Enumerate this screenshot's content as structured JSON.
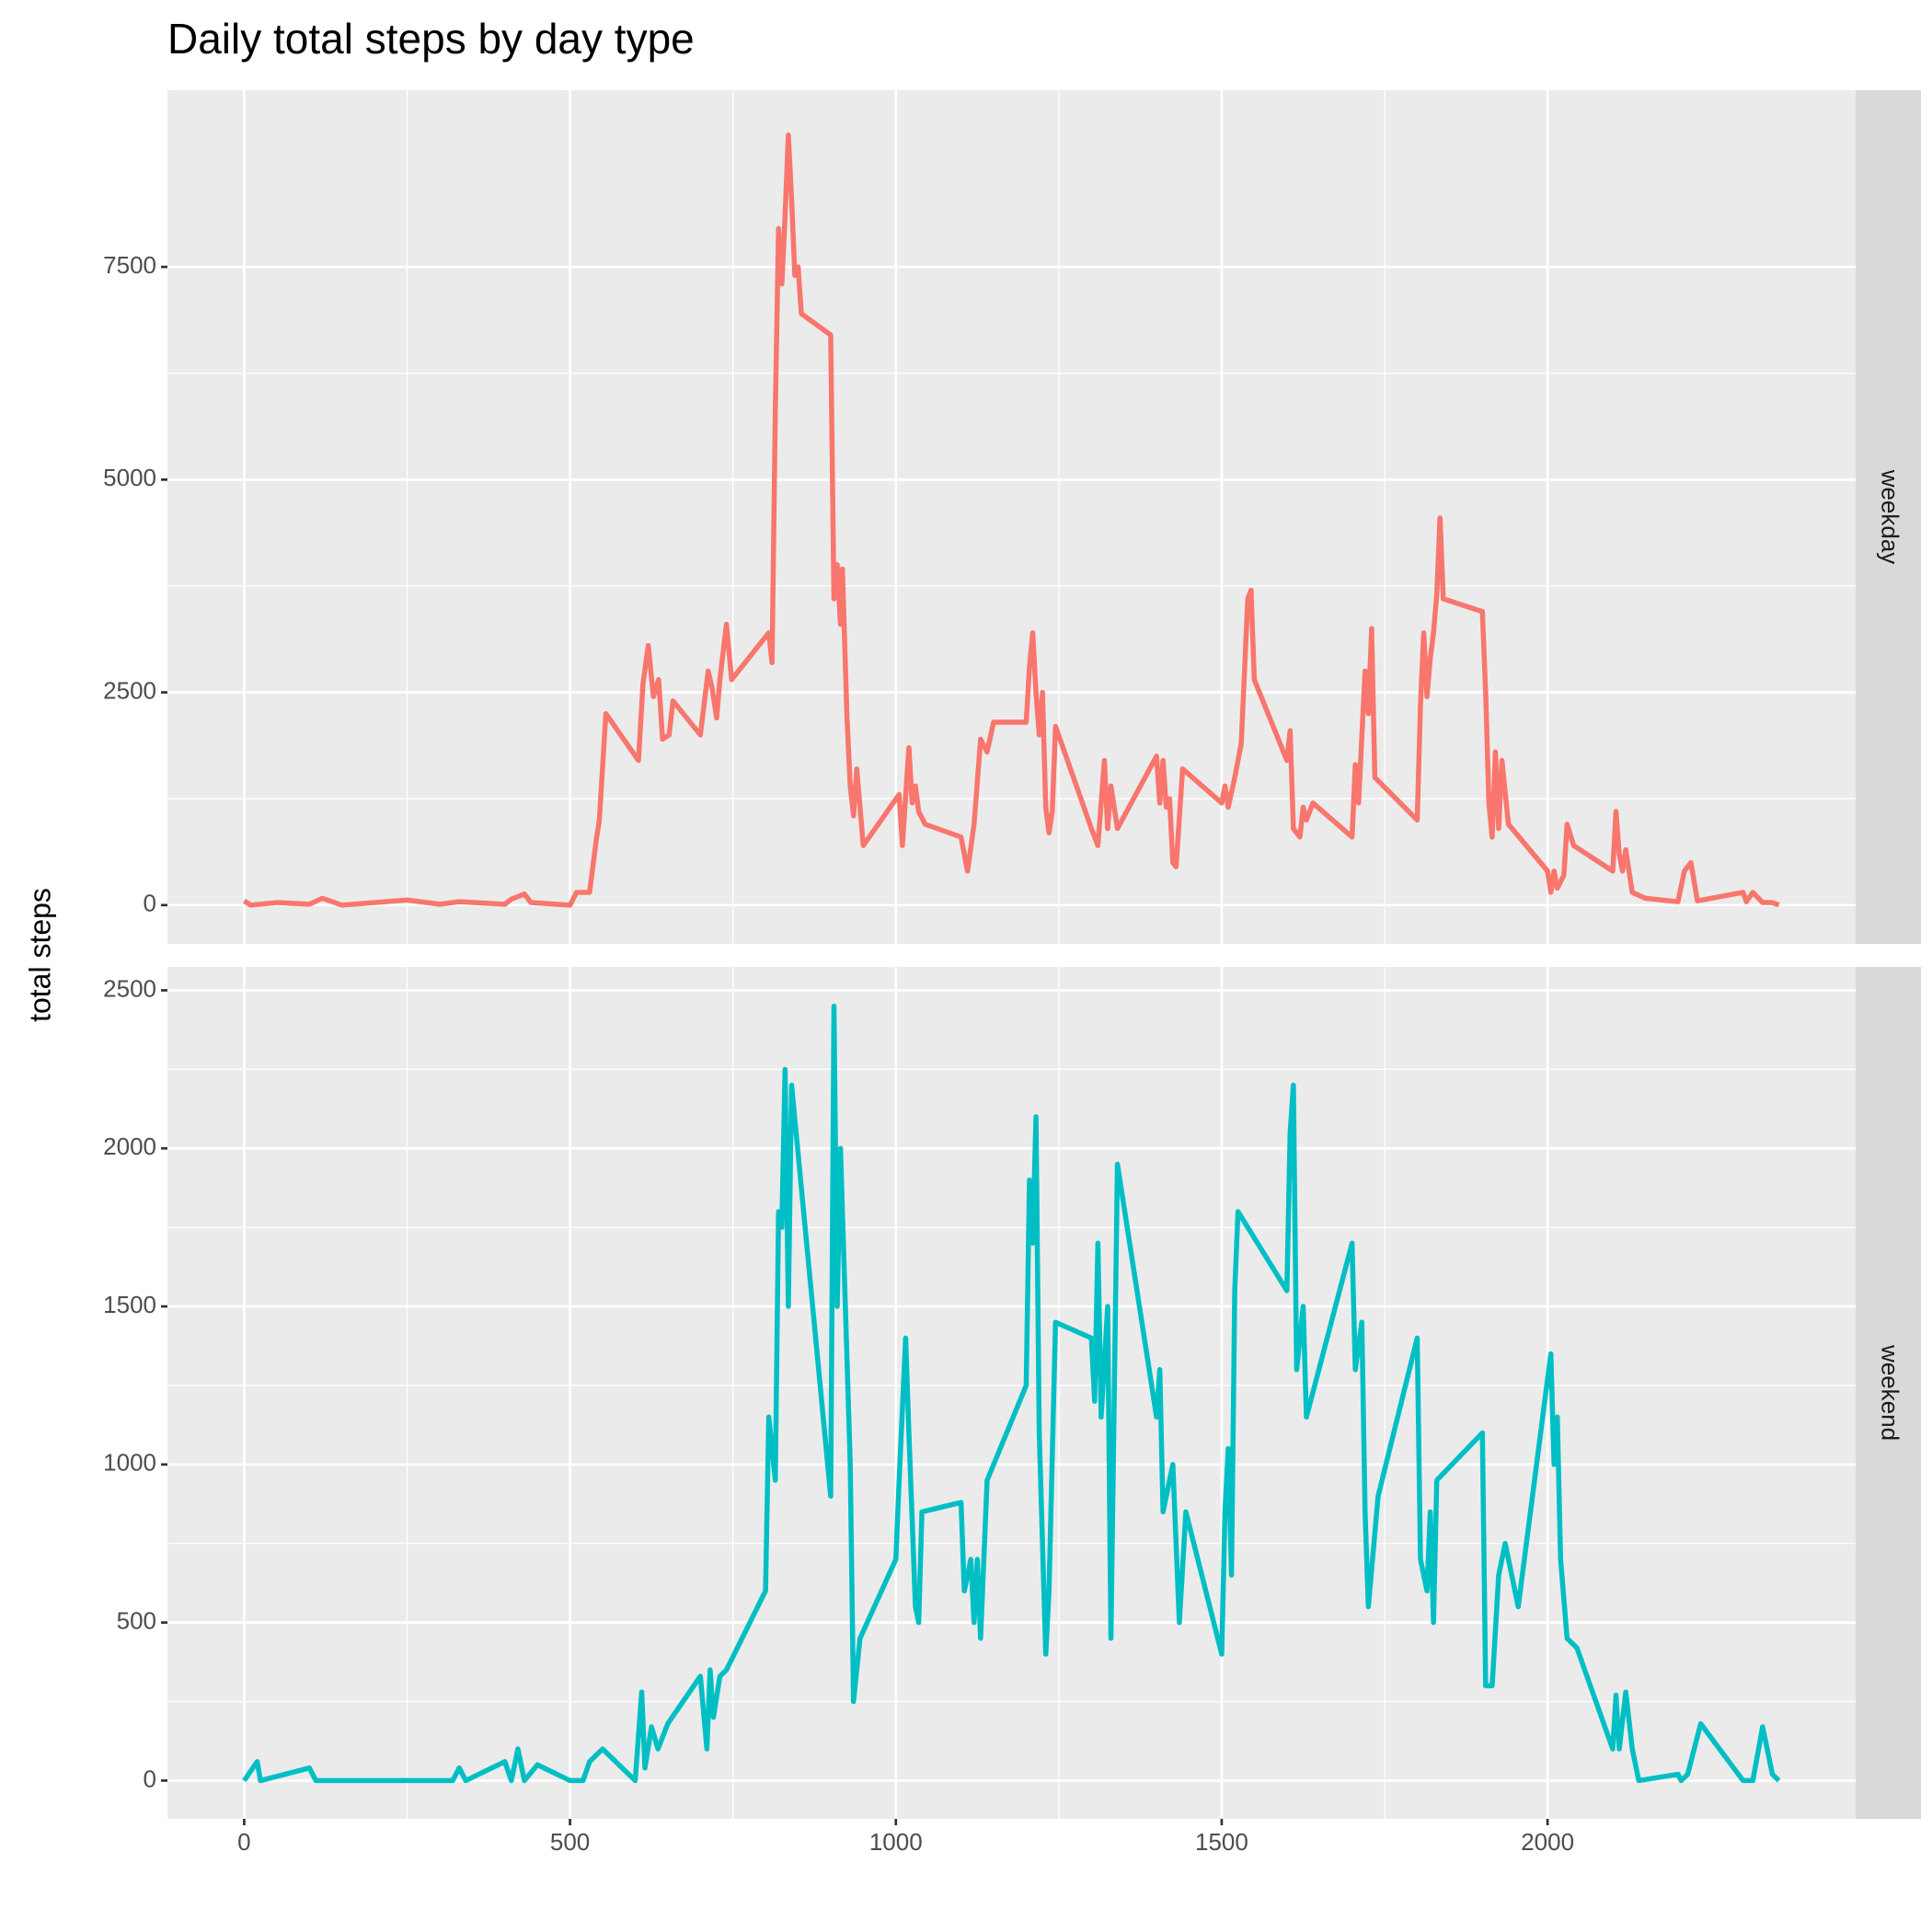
{
  "chart_data": {
    "type": "line",
    "title": "Daily total steps by day type",
    "ylabel": "total steps",
    "xlim": [
      -117.75,
      2472.75
    ],
    "xticks": [
      0,
      500,
      1000,
      1500,
      2000
    ],
    "series": [
      {
        "name": "weekday",
        "color": "#F8766D",
        "ylim": [
          -456,
          9577
        ],
        "yticks": [
          0,
          2500,
          5000,
          7500
        ],
        "x": [
          0,
          10,
          50,
          100,
          120,
          150,
          250,
          300,
          330,
          400,
          410,
          430,
          440,
          500,
          510,
          530,
          540,
          545,
          555,
          605,
          612,
          620,
          628,
          636,
          642,
          652,
          658,
          700,
          712,
          718,
          725,
          730,
          740,
          748,
          805,
          810,
          815,
          820,
          825,
          830,
          835,
          840,
          845,
          850,
          855,
          900,
          905,
          910,
          915,
          918,
          925,
          930,
          935,
          940,
          950,
          1005,
          1010,
          1020,
          1025,
          1030,
          1035,
          1045,
          1100,
          1110,
          1120,
          1130,
          1140,
          1150,
          1200,
          1205,
          1210,
          1215,
          1220,
          1225,
          1230,
          1235,
          1240,
          1245,
          1300,
          1310,
          1320,
          1325,
          1330,
          1340,
          1400,
          1405,
          1410,
          1415,
          1420,
          1425,
          1430,
          1440,
          1500,
          1505,
          1510,
          1520,
          1530,
          1540,
          1545,
          1550,
          1600,
          1605,
          1610,
          1620,
          1625,
          1630,
          1640,
          1700,
          1705,
          1710,
          1720,
          1725,
          1730,
          1735,
          1800,
          1805,
          1810,
          1815,
          1820,
          1825,
          1830,
          1835,
          1840,
          1900,
          1905,
          1910,
          1915,
          1920,
          1925,
          1930,
          1940,
          2000,
          2005,
          2010,
          2015,
          2025,
          2030,
          2040,
          2100,
          2105,
          2110,
          2115,
          2120,
          2130,
          2150,
          2200,
          2210,
          2220,
          2230,
          2300,
          2305,
          2315,
          2330,
          2345,
          2355
        ],
        "values": [
          50,
          0,
          30,
          10,
          80,
          0,
          60,
          10,
          40,
          10,
          70,
          130,
          30,
          0,
          150,
          150,
          750,
          1000,
          2250,
          1700,
          2600,
          3050,
          2450,
          2650,
          1950,
          2000,
          2400,
          2000,
          2750,
          2550,
          2200,
          2650,
          3300,
          2650,
          3200,
          2850,
          5800,
          7950,
          7300,
          8100,
          9050,
          8300,
          7400,
          7500,
          6950,
          6700,
          3600,
          4000,
          3300,
          3950,
          2200,
          1400,
          1050,
          1600,
          700,
          1300,
          700,
          1850,
          1200,
          1400,
          1100,
          950,
          800,
          400,
          950,
          1950,
          1800,
          2150,
          2150,
          2800,
          3200,
          2500,
          2000,
          2500,
          1150,
          850,
          1100,
          2100,
          900,
          700,
          1700,
          900,
          1400,
          900,
          1750,
          1200,
          1700,
          1150,
          1250,
          500,
          450,
          1600,
          1200,
          1400,
          1150,
          1500,
          1900,
          3600,
          3700,
          2650,
          1700,
          2050,
          900,
          800,
          1150,
          1000,
          1200,
          800,
          1650,
          1200,
          2750,
          2250,
          3250,
          1500,
          1000,
          2350,
          3200,
          2450,
          2900,
          3200,
          3650,
          4550,
          3600,
          3450,
          2500,
          1200,
          800,
          1800,
          900,
          1700,
          950,
          400,
          150,
          400,
          200,
          350,
          950,
          700,
          400,
          1100,
          600,
          400,
          650,
          150,
          80,
          40,
          400,
          500,
          50,
          150,
          40,
          150,
          30,
          30,
          0
        ]
      },
      {
        "name": "weekend",
        "color": "#00BFC4",
        "ylim": [
          -121,
          2574
        ],
        "yticks": [
          0,
          500,
          1000,
          1500,
          2000,
          2500
        ],
        "x": [
          0,
          20,
          25,
          100,
          110,
          250,
          320,
          330,
          340,
          400,
          410,
          420,
          430,
          450,
          500,
          520,
          530,
          550,
          600,
          610,
          615,
          625,
          635,
          650,
          700,
          710,
          715,
          720,
          730,
          740,
          800,
          805,
          815,
          820,
          825,
          830,
          835,
          840,
          900,
          905,
          910,
          915,
          930,
          935,
          945,
          1000,
          1005,
          1015,
          1020,
          1030,
          1035,
          1040,
          1100,
          1105,
          1115,
          1120,
          1125,
          1130,
          1140,
          1200,
          1205,
          1210,
          1215,
          1220,
          1230,
          1235,
          1245,
          1300,
          1305,
          1310,
          1315,
          1325,
          1330,
          1340,
          1400,
          1405,
          1410,
          1425,
          1435,
          1445,
          1500,
          1505,
          1510,
          1515,
          1520,
          1525,
          1600,
          1605,
          1610,
          1615,
          1625,
          1630,
          1700,
          1705,
          1715,
          1720,
          1725,
          1740,
          1800,
          1805,
          1815,
          1820,
          1825,
          1830,
          1900,
          1905,
          1915,
          1925,
          1935,
          1955,
          2005,
          2010,
          2015,
          2020,
          2030,
          2045,
          2100,
          2105,
          2110,
          2120,
          2130,
          2140,
          2200,
          2205,
          2215,
          2235,
          2300,
          2315,
          2330,
          2345,
          2355
        ],
        "values": [
          0,
          60,
          0,
          40,
          0,
          0,
          0,
          40,
          0,
          60,
          0,
          100,
          0,
          50,
          0,
          0,
          60,
          100,
          0,
          280,
          40,
          170,
          100,
          180,
          330,
          100,
          350,
          200,
          330,
          350,
          600,
          1150,
          950,
          1800,
          1750,
          2250,
          1500,
          2200,
          900,
          2450,
          1500,
          2000,
          1000,
          250,
          450,
          700,
          950,
          1400,
          1100,
          550,
          500,
          850,
          880,
          600,
          700,
          500,
          700,
          450,
          950,
          1250,
          1900,
          1700,
          2100,
          1100,
          400,
          600,
          1450,
          1400,
          1200,
          1700,
          1150,
          1500,
          450,
          1950,
          1150,
          1300,
          850,
          1000,
          500,
          850,
          400,
          850,
          1050,
          650,
          1550,
          1800,
          1550,
          2050,
          2200,
          1300,
          1500,
          1150,
          1700,
          1300,
          1450,
          850,
          550,
          900,
          1400,
          700,
          600,
          850,
          500,
          950,
          1100,
          300,
          300,
          650,
          750,
          550,
          1350,
          1000,
          1150,
          700,
          450,
          420,
          100,
          270,
          100,
          280,
          100,
          0,
          20,
          0,
          20,
          180,
          0,
          0,
          170,
          20,
          0
        ]
      }
    ]
  }
}
